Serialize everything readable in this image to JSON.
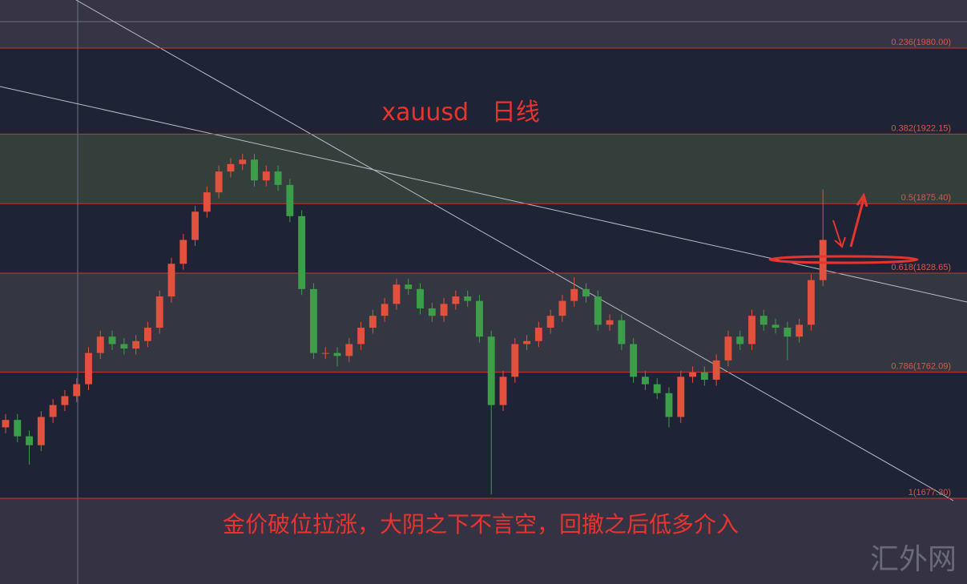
{
  "chart_data": {
    "type": "candlestick",
    "title": "xauusd   日线",
    "annotation": "金价破位拉涨，大阴之下不言空，回撤之后低多介入",
    "watermark": "汇外网",
    "ylim": [
      1619.7,
      2012.3
    ],
    "levels": [
      {
        "value": 1980.0,
        "label": "0.236(1980.00)"
      },
      {
        "value": 1922.15,
        "label": "0.382(1922.15)"
      },
      {
        "value": 1875.4,
        "label": "0.5(1875.40)"
      },
      {
        "value": 1828.65,
        "label": "0.618(1828.65)"
      },
      {
        "value": 1762.09,
        "label": "0.786(1762.09)"
      },
      {
        "value": 1677.3,
        "label": "1(1677.30)"
      }
    ],
    "up_color": "#e2503e",
    "down_color": "#3d9e4a",
    "open": [
      1725,
      1730,
      1719,
      1713,
      1732,
      1740,
      1746,
      1754,
      1775,
      1786,
      1781,
      1778,
      1783,
      1792,
      1813,
      1835,
      1851,
      1870,
      1883,
      1897,
      1902,
      1905,
      1891,
      1897,
      1888,
      1867,
      1818,
      1775,
      1775,
      1773,
      1781,
      1792,
      1800,
      1808,
      1821,
      1818,
      1805,
      1800,
      1808,
      1813,
      1810,
      1786,
      1740,
      1759,
      1781,
      1783,
      1792,
      1800,
      1810,
      1818,
      1813,
      1794,
      1797,
      1781,
      1759,
      1754,
      1748,
      1732,
      1759,
      1762,
      1757,
      1770,
      1786,
      1781,
      1800,
      1794,
      1792,
      1786,
      1794,
      1824
    ],
    "high": [
      1734,
      1734,
      1723,
      1736,
      1744,
      1750,
      1758,
      1779,
      1790,
      1790,
      1785,
      1787,
      1796,
      1817,
      1839,
      1855,
      1874,
      1887,
      1901,
      1906,
      1909,
      1909,
      1901,
      1901,
      1892,
      1871,
      1822,
      1779,
      1779,
      1785,
      1796,
      1804,
      1812,
      1825,
      1825,
      1822,
      1809,
      1812,
      1817,
      1817,
      1814,
      1790,
      1763,
      1785,
      1787,
      1796,
      1804,
      1814,
      1826,
      1822,
      1817,
      1801,
      1801,
      1785,
      1763,
      1758,
      1752,
      1763,
      1766,
      1766,
      1774,
      1790,
      1790,
      1804,
      1804,
      1798,
      1796,
      1798,
      1828,
      1885
    ],
    "low": [
      1721,
      1715,
      1700,
      1709,
      1728,
      1736,
      1742,
      1750,
      1771,
      1777,
      1774,
      1774,
      1779,
      1788,
      1809,
      1831,
      1847,
      1866,
      1879,
      1893,
      1898,
      1887,
      1887,
      1884,
      1863,
      1814,
      1771,
      1771,
      1766,
      1769,
      1777,
      1788,
      1796,
      1804,
      1814,
      1801,
      1796,
      1796,
      1804,
      1806,
      1782,
      1680,
      1736,
      1755,
      1777,
      1779,
      1788,
      1796,
      1806,
      1809,
      1790,
      1790,
      1777,
      1755,
      1750,
      1744,
      1725,
      1728,
      1755,
      1753,
      1753,
      1766,
      1777,
      1777,
      1790,
      1788,
      1770,
      1782,
      1790,
      1820
    ],
    "close": [
      1730,
      1719,
      1713,
      1732,
      1740,
      1746,
      1754,
      1775,
      1786,
      1781,
      1778,
      1783,
      1792,
      1813,
      1835,
      1851,
      1870,
      1883,
      1897,
      1902,
      1905,
      1891,
      1897,
      1888,
      1867,
      1818,
      1775,
      1775,
      1773,
      1781,
      1792,
      1800,
      1808,
      1821,
      1818,
      1805,
      1800,
      1808,
      1813,
      1810,
      1786,
      1740,
      1759,
      1781,
      1783,
      1792,
      1800,
      1810,
      1818,
      1813,
      1794,
      1797,
      1781,
      1759,
      1754,
      1748,
      1732,
      1759,
      1762,
      1757,
      1770,
      1786,
      1781,
      1800,
      1794,
      1792,
      1786,
      1794,
      1824,
      1851
    ]
  }
}
